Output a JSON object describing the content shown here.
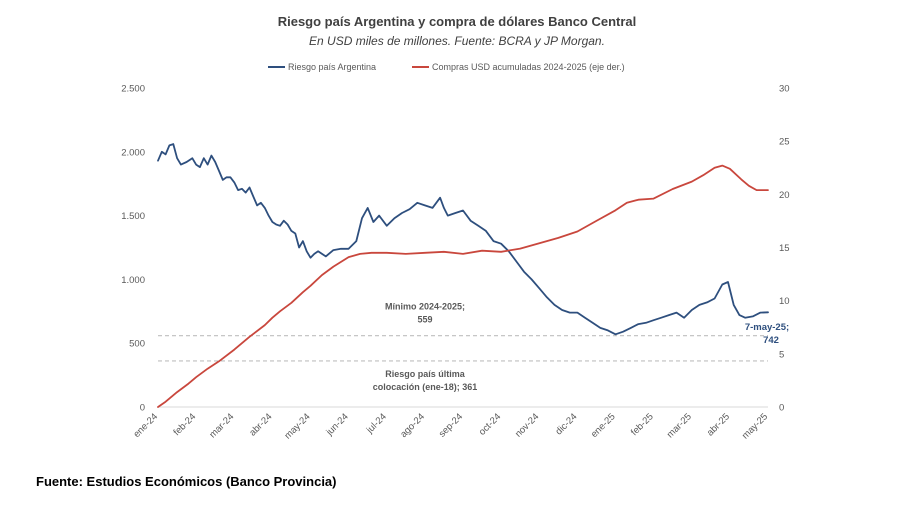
{
  "chart_data": {
    "type": "line",
    "title": "Riesgo país Argentina y compra de dólares Banco Central",
    "subtitle": "En USD miles de millones. Fuente: BCRA y JP Morgan.",
    "legend": [
      {
        "name": "Riesgo país Argentina",
        "color": "#2e4f7e",
        "axis": "left"
      },
      {
        "name": "Compras USD acumuladas 2024-2025 (eje der.)",
        "color": "#c9473d",
        "axis": "right"
      }
    ],
    "y_left": {
      "min": 0,
      "max": 2500,
      "ticks": [
        "0",
        "500",
        "1.000",
        "1.500",
        "2.000",
        "2.500"
      ],
      "tick_values": [
        0,
        500,
        1000,
        1500,
        2000,
        2500
      ]
    },
    "y_right": {
      "min": 0,
      "max": 30,
      "ticks": [
        "0",
        "5",
        "10",
        "15",
        "20",
        "25",
        "30"
      ],
      "tick_values": [
        0,
        5,
        10,
        15,
        20,
        25,
        30
      ]
    },
    "x_labels": [
      "ene-24",
      "feb-24",
      "mar-24",
      "abr-24",
      "may-24",
      "jun-24",
      "jul-24",
      "ago-24",
      "sep-24",
      "oct-24",
      "nov-24",
      "dic-24",
      "ene-25",
      "feb-25",
      "mar-25",
      "abr-25",
      "may-25"
    ],
    "series": [
      {
        "name": "Riesgo país Argentina",
        "axis": "left",
        "x": [
          0,
          0.1,
          0.2,
          0.3,
          0.4,
          0.5,
          0.6,
          0.75,
          0.9,
          1.0,
          1.1,
          1.2,
          1.3,
          1.4,
          1.5,
          1.6,
          1.7,
          1.8,
          1.9,
          2.0,
          2.1,
          2.2,
          2.3,
          2.4,
          2.5,
          2.6,
          2.7,
          2.8,
          2.9,
          3.0,
          3.1,
          3.2,
          3.3,
          3.4,
          3.5,
          3.6,
          3.7,
          3.8,
          3.9,
          4.0,
          4.1,
          4.2,
          4.4,
          4.6,
          4.8,
          5.0,
          5.2,
          5.35,
          5.5,
          5.65,
          5.8,
          6.0,
          6.2,
          6.4,
          6.6,
          6.8,
          7.0,
          7.2,
          7.4,
          7.5,
          7.6,
          7.8,
          8.0,
          8.2,
          8.4,
          8.6,
          8.8,
          9.0,
          9.2,
          9.4,
          9.6,
          9.8,
          10.0,
          10.2,
          10.4,
          10.6,
          10.8,
          11.0,
          11.2,
          11.4,
          11.6,
          11.8,
          12.0,
          12.2,
          12.4,
          12.6,
          12.8,
          13.0,
          13.2,
          13.4,
          13.6,
          13.8,
          14.0,
          14.2,
          14.4,
          14.6,
          14.8,
          14.95,
          15.1,
          15.25,
          15.4,
          15.6,
          15.8,
          16.0
        ],
        "values": [
          1930,
          2000,
          1980,
          2050,
          2060,
          1950,
          1900,
          1920,
          1950,
          1900,
          1880,
          1950,
          1900,
          1970,
          1920,
          1850,
          1780,
          1800,
          1800,
          1760,
          1700,
          1710,
          1680,
          1720,
          1650,
          1580,
          1600,
          1560,
          1500,
          1450,
          1430,
          1420,
          1460,
          1430,
          1380,
          1360,
          1250,
          1300,
          1220,
          1170,
          1200,
          1220,
          1180,
          1230,
          1240,
          1240,
          1300,
          1480,
          1560,
          1450,
          1500,
          1420,
          1480,
          1520,
          1550,
          1600,
          1580,
          1560,
          1640,
          1560,
          1500,
          1520,
          1540,
          1460,
          1420,
          1380,
          1300,
          1280,
          1220,
          1140,
          1060,
          1000,
          930,
          860,
          800,
          760,
          740,
          740,
          700,
          660,
          620,
          600,
          570,
          590,
          620,
          650,
          660,
          680,
          700,
          720,
          740,
          700,
          760,
          800,
          820,
          850,
          960,
          980,
          800,
          720,
          700,
          710,
          740,
          742
        ]
      },
      {
        "name": "Compras USD acumuladas 2024-2025 (eje der.)",
        "axis": "right",
        "x": [
          0,
          0.2,
          0.5,
          0.8,
          1.0,
          1.3,
          1.6,
          2.0,
          2.4,
          2.8,
          3.0,
          3.2,
          3.5,
          3.8,
          4.0,
          4.3,
          4.6,
          5.0,
          5.3,
          5.6,
          6.0,
          6.5,
          7.0,
          7.5,
          8.0,
          8.5,
          9.0,
          9.5,
          10.0,
          10.5,
          11.0,
          11.5,
          12.0,
          12.3,
          12.6,
          13.0,
          13.5,
          14.0,
          14.3,
          14.6,
          14.8,
          15.0,
          15.3,
          15.5,
          15.7,
          16.0
        ],
        "values": [
          0,
          0.5,
          1.4,
          2.2,
          2.8,
          3.6,
          4.3,
          5.4,
          6.6,
          7.7,
          8.4,
          9.0,
          9.8,
          10.8,
          11.4,
          12.4,
          13.2,
          14.1,
          14.4,
          14.5,
          14.5,
          14.4,
          14.5,
          14.6,
          14.4,
          14.7,
          14.6,
          14.9,
          15.4,
          15.9,
          16.5,
          17.5,
          18.5,
          19.2,
          19.5,
          19.6,
          20.5,
          21.2,
          21.8,
          22.5,
          22.7,
          22.4,
          21.4,
          20.8,
          20.4,
          20.4
        ]
      }
    ],
    "reference_lines": [
      {
        "value": 559,
        "label_line1": "Mínimo 2024-2025;",
        "label_line2": "559"
      },
      {
        "value": 361,
        "label_line1": "Riesgo país última",
        "label_line2": "colocación (ene-18); 361"
      }
    ],
    "end_label": {
      "line1": "7-may-25;",
      "line2": "742"
    }
  },
  "source": "Fuente: Estudios Económicos (Banco Provincia)"
}
